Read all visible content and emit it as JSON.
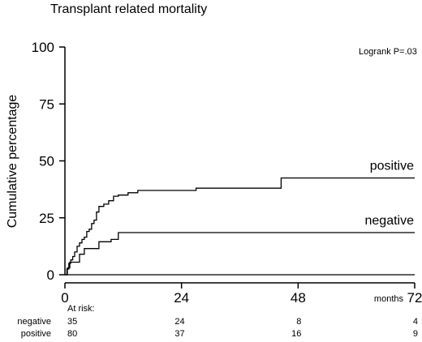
{
  "chart_data": {
    "type": "line",
    "step": true,
    "title": "Transplant related mortality",
    "ylabel": "Cumulative percentage",
    "xunit": "months",
    "annotation": "Logrank P=.03",
    "xlim": [
      0,
      72
    ],
    "ylim": [
      0,
      100
    ],
    "xticks": [
      0,
      24,
      48,
      72
    ],
    "yticks": [
      0,
      25,
      50,
      75,
      100
    ],
    "grid": false,
    "series": [
      {
        "name": "positive",
        "x": [
          0,
          0.4,
          0.8,
          1.2,
          1.6,
          2.0,
          2.5,
          3.0,
          3.5,
          4.0,
          4.5,
          5.0,
          5.5,
          6.0,
          6.5,
          7.0,
          7.5,
          8.0,
          9.0,
          10.0,
          11.0,
          12.0,
          13.0,
          15.0,
          27.0,
          44.5,
          72
        ],
        "y": [
          0,
          2.5,
          5.0,
          6.5,
          8.0,
          10.0,
          12.5,
          14.0,
          15.5,
          16.5,
          19.0,
          20.0,
          22.5,
          24.0,
          27.5,
          30.0,
          30.0,
          31.0,
          32.5,
          34.5,
          35.0,
          35.0,
          36.0,
          37.0,
          38.0,
          42.5,
          42.5
        ]
      },
      {
        "name": "negative",
        "x": [
          0,
          0.5,
          1.0,
          2.0,
          3.0,
          4.0,
          5.5,
          7.0,
          9.5,
          11.0,
          72
        ],
        "y": [
          0,
          3.0,
          5.5,
          5.5,
          9.0,
          11.5,
          11.5,
          14.5,
          15.5,
          18.5,
          18.5
        ]
      },
      {
        "name": "",
        "x": [
          0,
          72
        ],
        "y": [
          0,
          0
        ]
      }
    ],
    "at_risk": {
      "header": "At risk:",
      "times": [
        0,
        24,
        48,
        72
      ],
      "rows": [
        {
          "group": "negative",
          "counts": [
            35,
            24,
            8,
            4
          ]
        },
        {
          "group": "positive",
          "counts": [
            80,
            37,
            16,
            9
          ]
        }
      ]
    }
  }
}
